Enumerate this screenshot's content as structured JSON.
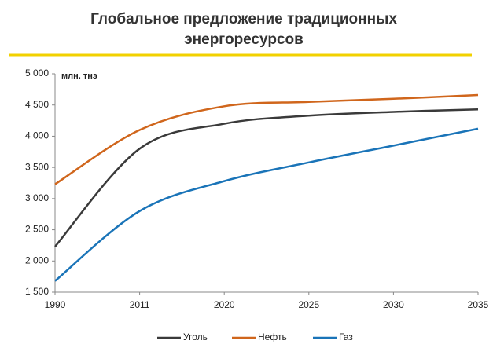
{
  "chart_data": {
    "type": "line",
    "title": [
      "Глобальное предложение традиционных",
      "энергоресурсов"
    ],
    "y_axis_label": "млн. тнэ",
    "categories": [
      "1990",
      "2011",
      "2020",
      "2025",
      "2030",
      "2035"
    ],
    "series": [
      {
        "name": "Уголь",
        "color": "#3a3a3a",
        "values": [
          2230,
          3800,
          4200,
          4330,
          4390,
          4430
        ]
      },
      {
        "name": "Нефть",
        "color": "#d0661c",
        "values": [
          3230,
          4100,
          4480,
          4550,
          4600,
          4660
        ]
      },
      {
        "name": "Газ",
        "color": "#1a74b8",
        "values": [
          1680,
          2800,
          3280,
          3580,
          3850,
          4120
        ]
      }
    ],
    "ylim": [
      1500,
      5000
    ],
    "yticks": [
      {
        "value": 1500,
        "label": "1 500"
      },
      {
        "value": 2000,
        "label": "2 000"
      },
      {
        "value": 2500,
        "label": "2 500"
      },
      {
        "value": 3000,
        "label": "3 000"
      },
      {
        "value": 3500,
        "label": "3 500"
      },
      {
        "value": 4000,
        "label": "4 000"
      },
      {
        "value": 4500,
        "label": "4 500"
      },
      {
        "value": 5000,
        "label": "5 000"
      }
    ],
    "grid": false,
    "legend": "bottom"
  }
}
